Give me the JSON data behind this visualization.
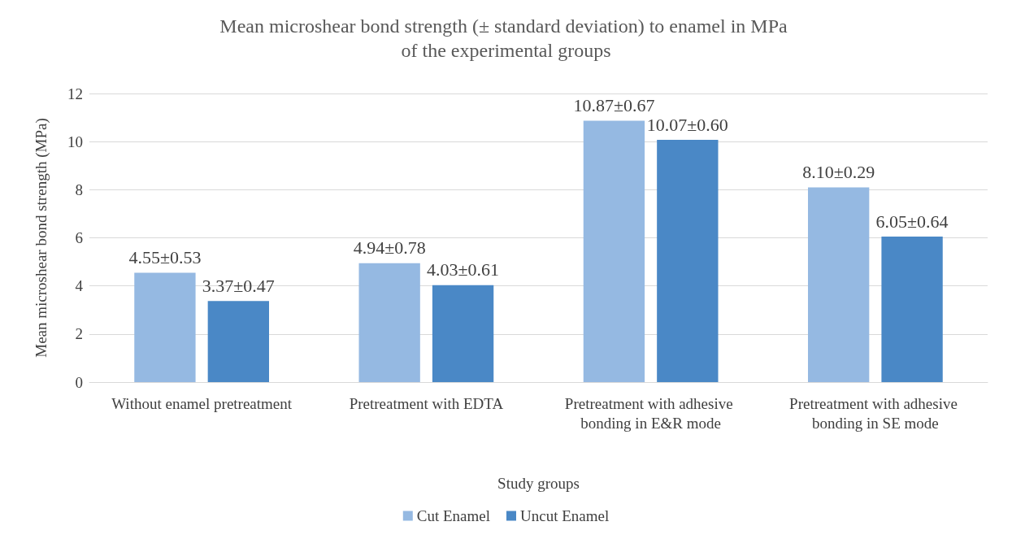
{
  "chart_data": {
    "type": "bar",
    "title": "Mean microshear bond strength (± standard deviation) to enamel in MPa of the experimental groups",
    "xlabel": "Study groups",
    "ylabel": "Mean microshear bond strength (MPa)",
    "categories": [
      "Without enamel pretreatment",
      "Pretreatment with EDTA",
      "Pretreatment with adhesive bonding in E&R mode",
      "Pretreatment with adhesive bonding in SE mode"
    ],
    "series": [
      {
        "name": "Cut Enamel",
        "color": "#95b9e2",
        "values": [
          4.55,
          4.94,
          10.87,
          8.1
        ],
        "value_labels": [
          "4.55±0.53",
          "4.94±0.78",
          "10.87±0.67",
          "8.10±0.29"
        ]
      },
      {
        "name": "Uncut Enamel",
        "color": "#4a88c6",
        "values": [
          3.37,
          4.03,
          10.07,
          6.05
        ],
        "value_labels": [
          "3.37±0.47",
          "4.03±0.61",
          "10.07±0.60",
          "6.05±0.64"
        ]
      }
    ],
    "ylim": [
      0,
      12
    ],
    "yticks": [
      0,
      2,
      4,
      6,
      8,
      10,
      12
    ],
    "grid": "y",
    "legend": "bottom"
  }
}
